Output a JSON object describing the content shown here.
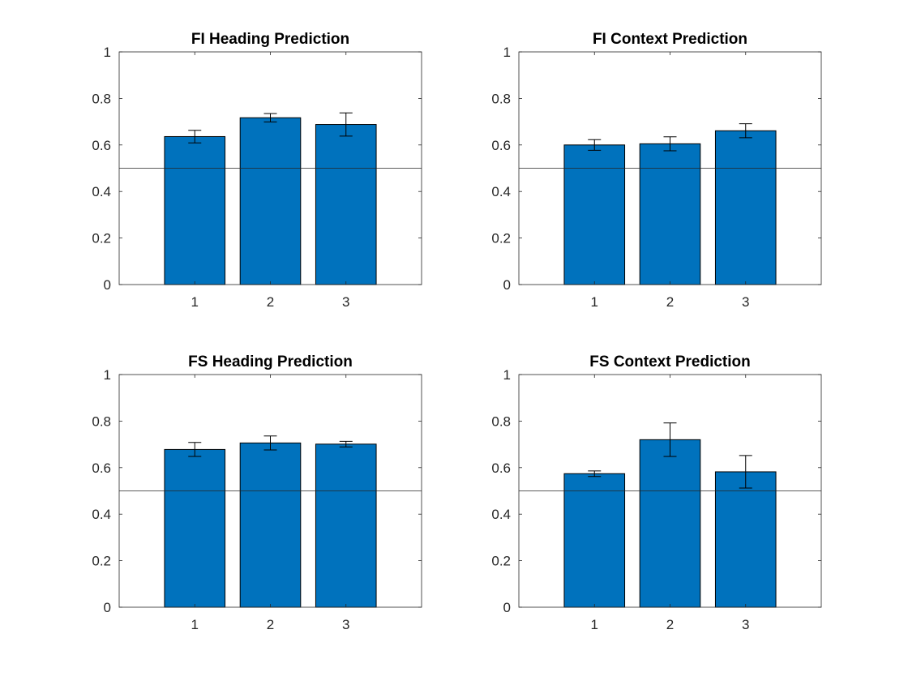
{
  "figure": {
    "background": "#ffffff",
    "bar_color": "#0072bd",
    "reference_line": 0.5
  },
  "chart_data": [
    {
      "type": "bar",
      "title": "FI Heading Prediction",
      "categories": [
        "1",
        "2",
        "3"
      ],
      "values": [
        0.636,
        0.717,
        0.688
      ],
      "error": [
        0.027,
        0.018,
        0.05
      ],
      "xlim": [
        0,
        4
      ],
      "ylim": [
        0,
        1
      ],
      "yticks": [
        0,
        0.2,
        0.4,
        0.6,
        0.8,
        1
      ],
      "ytick_labels": [
        "0",
        "0.2",
        "0.4",
        "0.6",
        "0.8",
        "1"
      ],
      "reference_line": 0.5,
      "grid": false
    },
    {
      "type": "bar",
      "title": "FI Context Prediction",
      "categories": [
        "1",
        "2",
        "3"
      ],
      "values": [
        0.6,
        0.605,
        0.661
      ],
      "error": [
        0.023,
        0.03,
        0.03
      ],
      "xlim": [
        0,
        4
      ],
      "ylim": [
        0,
        1
      ],
      "yticks": [
        0,
        0.2,
        0.4,
        0.6,
        0.8,
        1
      ],
      "ytick_labels": [
        "0",
        "0.2",
        "0.4",
        "0.6",
        "0.8",
        "1"
      ],
      "reference_line": 0.5,
      "grid": false
    },
    {
      "type": "bar",
      "title": "FS Heading Prediction",
      "categories": [
        "1",
        "2",
        "3"
      ],
      "values": [
        0.678,
        0.706,
        0.701
      ],
      "error": [
        0.03,
        0.03,
        0.012
      ],
      "xlim": [
        0,
        4
      ],
      "ylim": [
        0,
        1
      ],
      "yticks": [
        0,
        0.2,
        0.4,
        0.6,
        0.8,
        1
      ],
      "ytick_labels": [
        "0",
        "0.2",
        "0.4",
        "0.6",
        "0.8",
        "1"
      ],
      "reference_line": 0.5,
      "grid": false
    },
    {
      "type": "bar",
      "title": "FS Context Prediction",
      "categories": [
        "1",
        "2",
        "3"
      ],
      "values": [
        0.574,
        0.72,
        0.582
      ],
      "error": [
        0.012,
        0.072,
        0.07
      ],
      "xlim": [
        0,
        4
      ],
      "ylim": [
        0,
        1
      ],
      "yticks": [
        0,
        0.2,
        0.4,
        0.6,
        0.8,
        1
      ],
      "ytick_labels": [
        "0",
        "0.2",
        "0.4",
        "0.6",
        "0.8",
        "1"
      ],
      "reference_line": 0.5,
      "grid": false
    }
  ]
}
